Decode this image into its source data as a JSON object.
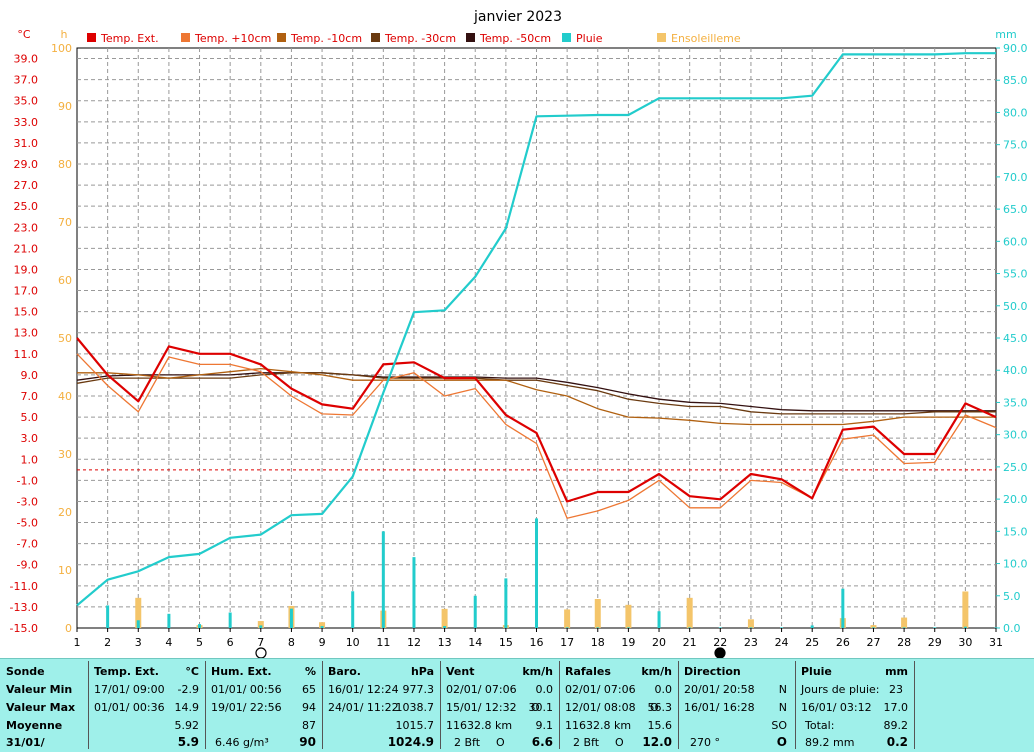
{
  "chart_data": {
    "type": "line",
    "title": "janvier 2023",
    "left_unit": "°C",
    "hours_unit": "h",
    "right_unit": "mm",
    "x": [
      1,
      2,
      3,
      4,
      5,
      6,
      7,
      8,
      9,
      10,
      11,
      12,
      13,
      14,
      15,
      16,
      17,
      18,
      19,
      20,
      21,
      22,
      23,
      24,
      25,
      26,
      27,
      28,
      29,
      30,
      31
    ],
    "temp_ylim": [
      -15,
      40
    ],
    "temp_ticks": [
      "39.0",
      "37.0",
      "35.0",
      "33.0",
      "31.0",
      "29.0",
      "27.0",
      "25.0",
      "23.0",
      "21.0",
      "19.0",
      "17.0",
      "15.0",
      "13.0",
      "11.0",
      "9.0",
      "7.0",
      "5.0",
      "3.0",
      "1.0",
      "-1.0",
      "-3.0",
      "-5.0",
      "-7.0",
      "-9.0",
      "-11.0",
      "-13.0",
      "-15.0"
    ],
    "hours_ticks": [
      "100",
      "90",
      "80",
      "70",
      "60",
      "50",
      "40",
      "30",
      "20",
      "10",
      "0"
    ],
    "rain_ticks": [
      "90.0",
      "85.0",
      "80.0",
      "75.0",
      "70.0",
      "65.0",
      "60.0",
      "55.0",
      "50.0",
      "45.0",
      "40.0",
      "35.0",
      "30.0",
      "25.0",
      "20.0",
      "15.0",
      "10.0",
      "5.0",
      "0.0"
    ],
    "x_ticks": [
      "1",
      "2",
      "3",
      "4",
      "5",
      "6",
      "7",
      "8",
      "9",
      "10",
      "11",
      "12",
      "13",
      "14",
      "15",
      "16",
      "17",
      "18",
      "19",
      "20",
      "21",
      "22",
      "23",
      "24",
      "25",
      "26",
      "27",
      "28",
      "29",
      "30",
      "31"
    ],
    "freezing_line": 0,
    "series": [
      {
        "name": "Temp. Ext.",
        "color": "#dd0000",
        "values": [
          12.5,
          9.0,
          6.5,
          11.7,
          11.0,
          11.0,
          10.0,
          7.7,
          6.2,
          5.8,
          10.0,
          10.2,
          8.7,
          8.7,
          5.2,
          3.5,
          -3.0,
          -2.1,
          -2.1,
          -0.4,
          -2.5,
          -2.8,
          -0.4,
          -0.9,
          -2.7,
          3.8,
          4.1,
          1.5,
          1.5,
          6.3,
          5.0
        ]
      },
      {
        "name": "Temp. +10cm",
        "color": "#ee7733",
        "values": [
          11.0,
          8.0,
          5.5,
          10.7,
          10.0,
          10.0,
          9.3,
          7.0,
          5.3,
          5.2,
          8.5,
          9.2,
          7.0,
          7.7,
          4.3,
          2.5,
          -4.6,
          -3.9,
          -2.9,
          -1.0,
          -3.6,
          -3.6,
          -1.0,
          -1.2,
          -2.7,
          2.9,
          3.3,
          0.6,
          0.7,
          5.2,
          4.0
        ]
      },
      {
        "name": "Temp. -10cm",
        "color": "#b06010",
        "values": [
          9.2,
          9.2,
          9.0,
          8.7,
          9.0,
          9.3,
          9.6,
          9.3,
          9.0,
          8.5,
          8.5,
          8.5,
          8.5,
          8.5,
          8.5,
          7.6,
          7.0,
          5.8,
          5.0,
          4.9,
          4.7,
          4.4,
          4.3,
          4.3,
          4.3,
          4.3,
          4.6,
          5.0,
          5.0,
          5.0,
          5.0
        ]
      },
      {
        "name": "Temp. -30cm",
        "color": "#6a3a10",
        "values": [
          8.2,
          8.7,
          8.7,
          8.7,
          8.7,
          8.7,
          9.0,
          9.2,
          9.2,
          9.0,
          8.7,
          8.7,
          8.7,
          8.7,
          8.5,
          8.5,
          8.0,
          7.5,
          6.7,
          6.3,
          6.0,
          6.0,
          5.5,
          5.3,
          5.3,
          5.3,
          5.3,
          5.3,
          5.5,
          5.5,
          5.5
        ]
      },
      {
        "name": "Temp. -50cm",
        "color": "#331010",
        "values": [
          8.5,
          8.9,
          9.0,
          9.0,
          9.0,
          9.0,
          9.2,
          9.2,
          9.2,
          9.0,
          8.8,
          8.8,
          8.8,
          8.8,
          8.7,
          8.7,
          8.3,
          7.8,
          7.2,
          6.7,
          6.4,
          6.3,
          6.0,
          5.7,
          5.6,
          5.6,
          5.6,
          5.6,
          5.6,
          5.6,
          5.6
        ]
      },
      {
        "name": "Pluie",
        "color": "#22cccc",
        "axis": "mm",
        "values": [
          3.5,
          7.5,
          8.8,
          11.0,
          11.5,
          14.0,
          14.5,
          17.5,
          17.7,
          23.5,
          36.5,
          49.0,
          49.3,
          54.5,
          62.0,
          79.4,
          79.5,
          79.6,
          79.6,
          82.2,
          82.2,
          82.2,
          82.2,
          82.2,
          82.6,
          89.0,
          89.0,
          89.0,
          89.0,
          89.2,
          89.2
        ]
      },
      {
        "name": "Ensoleilleme",
        "color": "#f4c56a",
        "axis": "h",
        "values": [
          0.0,
          0.0,
          5.2,
          0.0,
          0.5,
          0.0,
          1.2,
          3.8,
          1.0,
          0.0,
          3.0,
          0.0,
          3.3,
          0.0,
          0.5,
          0.0,
          3.2,
          5.0,
          4.0,
          0.0,
          5.2,
          0.0,
          1.5,
          0.0,
          0.0,
          1.7,
          0.5,
          1.8,
          0.0,
          6.3,
          0.0
        ]
      }
    ],
    "daily_rain_bars": [
      0,
      3.5,
      1.2,
      2.2,
      0.6,
      2.4,
      0.4,
      3.0,
      0.3,
      5.7,
      15.0,
      11.0,
      0.3,
      5.0,
      7.7,
      17.0,
      0.1,
      0.1,
      0.1,
      2.6,
      0.1,
      0.1,
      0.1,
      0.1,
      0.4,
      6.1,
      0.1,
      0.1,
      0.1,
      0.2,
      0.1
    ]
  },
  "colors": {
    "temp_axis": "#dd0000",
    "hours_axis": "#f4b040",
    "rain_axis": "#22cccc",
    "table_bg": "#9ff0ea"
  },
  "table": {
    "sonde": {
      "title": "Sonde",
      "min": "Valeur Min",
      "max": "Valeur Max",
      "avg": "Moyenne",
      "date": "31/01/"
    },
    "temp": {
      "title": "Temp. Ext.",
      "unit": "°C",
      "min_date": "17/01/ 09:00",
      "min_val": "-2.9",
      "max_date": "01/01/ 00:36",
      "max_val": "14.9",
      "avg": "5.92",
      "last": "5.9"
    },
    "hum": {
      "title": "Hum. Ext.",
      "unit": "%",
      "min_date": "01/01/ 00:56",
      "min_val": "65",
      "max_date": "19/01/ 22:56",
      "max_val": "94",
      "avg": "87",
      "last_abs": "6.46 g/m³",
      "last": "90"
    },
    "baro": {
      "title": "Baro.",
      "unit": "hPa",
      "min_date": "16/01/ 12:24",
      "min_val": "977.3",
      "max_date": "24/01/ 11:22",
      "max_val": "1038.7",
      "avg": "1015.7",
      "last": "1024.9"
    },
    "vent": {
      "title": "Vent",
      "unit": "km/h",
      "min_date": "02/01/ 07:06",
      "min_val": "0.0",
      "max_date": "15/01/ 12:32",
      "max_dir": "O",
      "max_val": "30.1",
      "dist": "11632.8 km",
      "avg": "9.1",
      "last_bft": "2 Bft",
      "last_dir": "O",
      "last": "6.6"
    },
    "rafales": {
      "title": "Rafales",
      "unit": "km/h",
      "min_date": "02/01/ 07:06",
      "min_val": "0.0",
      "max_date": "12/01/ 08:08",
      "max_dir": "O",
      "max_val": "56.3",
      "dist": "11632.8 km",
      "avg": "15.6",
      "last_bft": "2 Bft",
      "last_dir": "O",
      "last": "12.0"
    },
    "direction": {
      "title": "Direction",
      "min_date": "20/01/ 20:58",
      "min_dir": "N",
      "max_date": "16/01/ 16:28",
      "max_dir": "N",
      "avg": "SO",
      "last_deg": "270 °",
      "last": "O"
    },
    "pluie": {
      "title": "Pluie",
      "unit": "mm",
      "days_label": "Jours de pluie:",
      "days": "23",
      "max_date": "16/01/ 03:12",
      "max_val": "17.0",
      "total_label": "Total:",
      "total": "89.2",
      "last_total": "89.2 mm",
      "last": "0.2"
    }
  }
}
